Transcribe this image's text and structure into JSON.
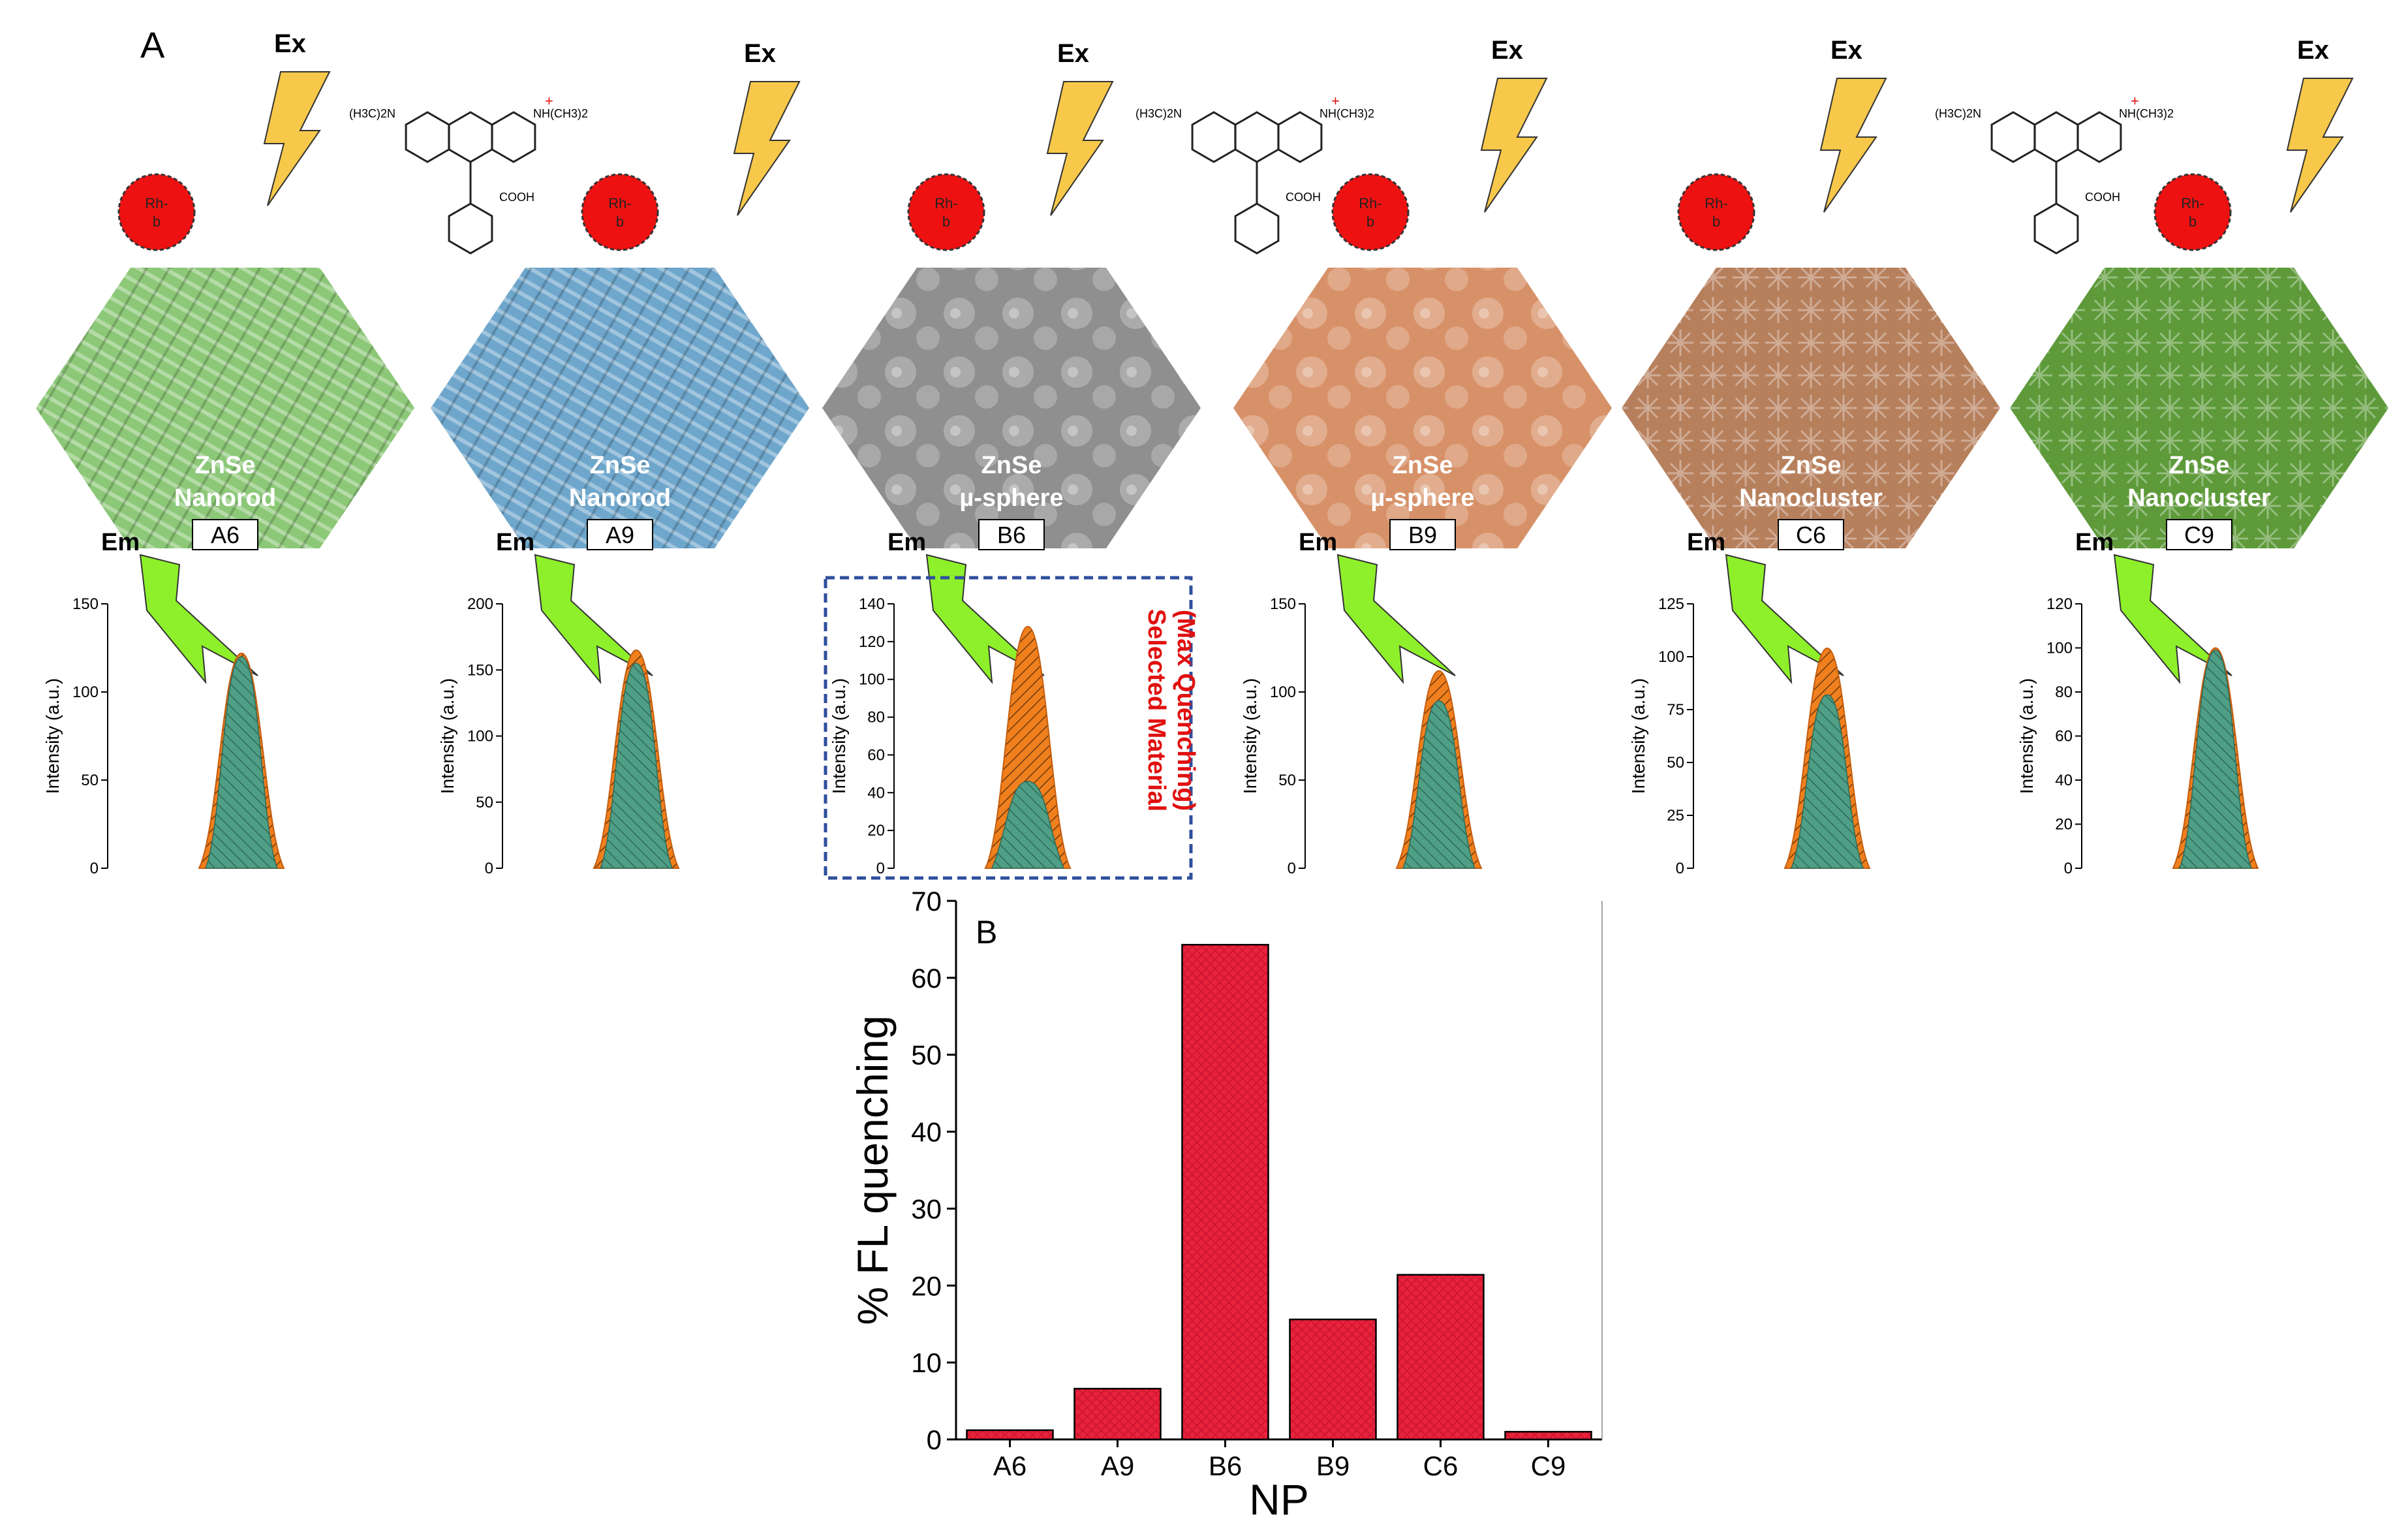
{
  "panel_a_label": "A",
  "panel_b_label": "B",
  "excitation_label": "Ex",
  "emission_label": "Em",
  "dye_label": "Rh-b",
  "dye_structure": {
    "left_group": "(H3C)2N",
    "right_group": "NH(CH3)2",
    "charge": "+",
    "acid_group": "COOH"
  },
  "selected_note": {
    "line1": "Selected Material",
    "line2": "(Max Quenching)"
  },
  "colors": {
    "bar": "#e8233b",
    "dye_circle": "#ee1111",
    "bolt_yellow": "#f7c84a",
    "bolt_green": "#8ef02a",
    "selected_box": "#2f4f9e",
    "selected_text": "#e01010"
  },
  "materials": [
    {
      "code": "A6",
      "name_line1": "ZnSe",
      "name_line2": "Nanorod",
      "image_tint": "#8cc877",
      "spectrum": {
        "ylabel": "Intensity (a.u.)",
        "ymax": 150,
        "ticks": [
          0,
          50,
          100,
          150
        ],
        "before_peak": 122,
        "after_peak": 120
      }
    },
    {
      "code": "A9",
      "name_line1": "ZnSe",
      "name_line2": "Nanorod",
      "image_tint": "#6ea6cc",
      "spectrum": {
        "ylabel": "Intensity (a.u.)",
        "ymax": 200,
        "ticks": [
          0,
          50,
          100,
          150,
          200
        ],
        "before_peak": 165,
        "after_peak": 155
      }
    },
    {
      "code": "B6",
      "name_line1": "ZnSe",
      "name_line2": "µ-sphere",
      "image_tint": "#8f8f8f",
      "spectrum": {
        "ylabel": "Intensity (a.u.)",
        "ymax": 140,
        "ticks": [
          0,
          20,
          40,
          60,
          80,
          100,
          120,
          140
        ],
        "before_peak": 128,
        "after_peak": 46
      }
    },
    {
      "code": "B9",
      "name_line1": "ZnSe",
      "name_line2": "µ-sphere",
      "image_tint": "#d79168",
      "spectrum": {
        "ylabel": "Intensity (a.u.)",
        "ymax": 150,
        "ticks": [
          0,
          50,
          100,
          150
        ],
        "before_peak": 112,
        "after_peak": 95
      }
    },
    {
      "code": "C6",
      "name_line1": "ZnSe",
      "name_line2": "Nanocluster",
      "image_tint": "#b7805d",
      "spectrum": {
        "ylabel": "Intensity (a.u.)",
        "ymax": 125,
        "ticks": [
          0,
          25,
          50,
          75,
          100,
          125
        ],
        "before_peak": 104,
        "after_peak": 82
      }
    },
    {
      "code": "C9",
      "name_line1": "ZnSe",
      "name_line2": "Nanocluster",
      "image_tint": "#5e9a3a",
      "spectrum": {
        "ylabel": "Intensity (a.u.)",
        "ymax": 120,
        "ticks": [
          0,
          20,
          40,
          60,
          80,
          100,
          120
        ],
        "before_peak": 100,
        "after_peak": 99
      }
    }
  ],
  "chart_data": {
    "type": "bar",
    "categories": [
      "A6",
      "A9",
      "B6",
      "B9",
      "C6",
      "C9"
    ],
    "values": [
      1.2,
      6.6,
      64.3,
      15.6,
      21.4,
      1.0
    ],
    "xlabel": "NP",
    "ylabel": "% FL quenching",
    "ylim": [
      0,
      70
    ],
    "yticks": [
      0,
      10,
      20,
      30,
      40,
      50,
      60,
      70
    ],
    "grid": false,
    "legend": "none"
  }
}
